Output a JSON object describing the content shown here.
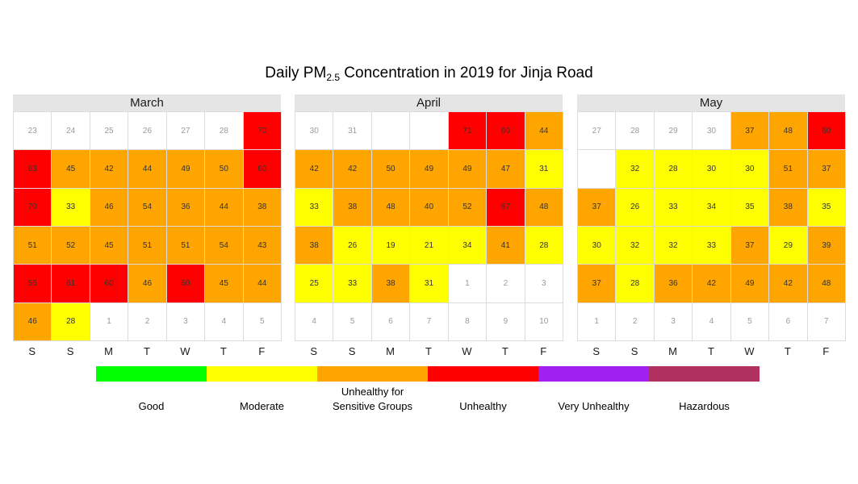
{
  "title": {
    "prefix": "Daily PM",
    "subscript": "2.5",
    "suffix": " Concentration in 2019 for Jinja Road"
  },
  "weekday_labels": [
    "S",
    "S",
    "M",
    "T",
    "W",
    "T",
    "F"
  ],
  "colors": {
    "Good": "#00ff00",
    "Moderate": "#ffff00",
    "Unhealthy for Sensitive Groups": "#ffa500",
    "Unhealthy": "#ff0000",
    "Very Unhealthy": "#a020f0",
    "Hazardous": "#b03060",
    "empty": "#ffffff",
    "out_of_month_text": "#9a9a9a",
    "in_month_text": "#333333"
  },
  "legend": [
    {
      "line1": "",
      "line2": "Good",
      "color": "#00ff00"
    },
    {
      "line1": "",
      "line2": "Moderate",
      "color": "#ffff00"
    },
    {
      "line1": "Unhealthy for",
      "line2": "Sensitive Groups",
      "color": "#ffa500"
    },
    {
      "line1": "",
      "line2": "Unhealthy",
      "color": "#ff0000"
    },
    {
      "line1": "",
      "line2": "Very Unhealthy",
      "color": "#a020f0"
    },
    {
      "line1": "",
      "line2": "Hazardous",
      "color": "#b03060"
    }
  ],
  "chart_data": {
    "type": "heatmap",
    "title": "Daily PM2.5 Concentration in 2019 for Jinja Road",
    "columns": [
      "S",
      "S",
      "M",
      "T",
      "W",
      "T",
      "F"
    ],
    "months": [
      {
        "name": "March",
        "rows": [
          [
            {
              "t": "23",
              "c": "empty"
            },
            {
              "t": "24",
              "c": "empty"
            },
            {
              "t": "25",
              "c": "empty"
            },
            {
              "t": "26",
              "c": "empty"
            },
            {
              "t": "27",
              "c": "empty"
            },
            {
              "t": "28",
              "c": "empty"
            },
            {
              "t": "70",
              "c": "Unhealthy"
            }
          ],
          [
            {
              "t": "63",
              "c": "Unhealthy"
            },
            {
              "t": "45",
              "c": "Unhealthy for Sensitive Groups"
            },
            {
              "t": "42",
              "c": "Unhealthy for Sensitive Groups"
            },
            {
              "t": "44",
              "c": "Unhealthy for Sensitive Groups"
            },
            {
              "t": "49",
              "c": "Unhealthy for Sensitive Groups"
            },
            {
              "t": "50",
              "c": "Unhealthy for Sensitive Groups"
            },
            {
              "t": "60",
              "c": "Unhealthy"
            }
          ],
          [
            {
              "t": "70",
              "c": "Unhealthy"
            },
            {
              "t": "33",
              "c": "Moderate"
            },
            {
              "t": "46",
              "c": "Unhealthy for Sensitive Groups"
            },
            {
              "t": "54",
              "c": "Unhealthy for Sensitive Groups"
            },
            {
              "t": "36",
              "c": "Unhealthy for Sensitive Groups"
            },
            {
              "t": "44",
              "c": "Unhealthy for Sensitive Groups"
            },
            {
              "t": "38",
              "c": "Unhealthy for Sensitive Groups"
            }
          ],
          [
            {
              "t": "51",
              "c": "Unhealthy for Sensitive Groups"
            },
            {
              "t": "52",
              "c": "Unhealthy for Sensitive Groups"
            },
            {
              "t": "45",
              "c": "Unhealthy for Sensitive Groups"
            },
            {
              "t": "51",
              "c": "Unhealthy for Sensitive Groups"
            },
            {
              "t": "51",
              "c": "Unhealthy for Sensitive Groups"
            },
            {
              "t": "54",
              "c": "Unhealthy for Sensitive Groups"
            },
            {
              "t": "43",
              "c": "Unhealthy for Sensitive Groups"
            }
          ],
          [
            {
              "t": "56",
              "c": "Unhealthy"
            },
            {
              "t": "61",
              "c": "Unhealthy"
            },
            {
              "t": "60",
              "c": "Unhealthy"
            },
            {
              "t": "46",
              "c": "Unhealthy for Sensitive Groups"
            },
            {
              "t": "60",
              "c": "Unhealthy"
            },
            {
              "t": "45",
              "c": "Unhealthy for Sensitive Groups"
            },
            {
              "t": "44",
              "c": "Unhealthy for Sensitive Groups"
            }
          ],
          [
            {
              "t": "46",
              "c": "Unhealthy for Sensitive Groups"
            },
            {
              "t": "28",
              "c": "Moderate"
            },
            {
              "t": "1",
              "c": "empty"
            },
            {
              "t": "2",
              "c": "empty"
            },
            {
              "t": "3",
              "c": "empty"
            },
            {
              "t": "4",
              "c": "empty"
            },
            {
              "t": "5",
              "c": "empty"
            }
          ]
        ]
      },
      {
        "name": "April",
        "rows": [
          [
            {
              "t": "30",
              "c": "empty"
            },
            {
              "t": "31",
              "c": "empty"
            },
            {
              "t": "",
              "c": "empty"
            },
            {
              "t": "",
              "c": "empty"
            },
            {
              "t": "71",
              "c": "Unhealthy"
            },
            {
              "t": "60",
              "c": "Unhealthy"
            },
            {
              "t": "44",
              "c": "Unhealthy for Sensitive Groups"
            }
          ],
          [
            {
              "t": "42",
              "c": "Unhealthy for Sensitive Groups"
            },
            {
              "t": "42",
              "c": "Unhealthy for Sensitive Groups"
            },
            {
              "t": "50",
              "c": "Unhealthy for Sensitive Groups"
            },
            {
              "t": "49",
              "c": "Unhealthy for Sensitive Groups"
            },
            {
              "t": "49",
              "c": "Unhealthy for Sensitive Groups"
            },
            {
              "t": "47",
              "c": "Unhealthy for Sensitive Groups"
            },
            {
              "t": "31",
              "c": "Moderate"
            }
          ],
          [
            {
              "t": "33",
              "c": "Moderate"
            },
            {
              "t": "38",
              "c": "Unhealthy for Sensitive Groups"
            },
            {
              "t": "48",
              "c": "Unhealthy for Sensitive Groups"
            },
            {
              "t": "40",
              "c": "Unhealthy for Sensitive Groups"
            },
            {
              "t": "52",
              "c": "Unhealthy for Sensitive Groups"
            },
            {
              "t": "67",
              "c": "Unhealthy"
            },
            {
              "t": "48",
              "c": "Unhealthy for Sensitive Groups"
            }
          ],
          [
            {
              "t": "38",
              "c": "Unhealthy for Sensitive Groups"
            },
            {
              "t": "26",
              "c": "Moderate"
            },
            {
              "t": "19",
              "c": "Moderate"
            },
            {
              "t": "21",
              "c": "Moderate"
            },
            {
              "t": "34",
              "c": "Moderate"
            },
            {
              "t": "41",
              "c": "Unhealthy for Sensitive Groups"
            },
            {
              "t": "28",
              "c": "Moderate"
            }
          ],
          [
            {
              "t": "25",
              "c": "Moderate"
            },
            {
              "t": "33",
              "c": "Moderate"
            },
            {
              "t": "38",
              "c": "Unhealthy for Sensitive Groups"
            },
            {
              "t": "31",
              "c": "Moderate"
            },
            {
              "t": "1",
              "c": "empty"
            },
            {
              "t": "2",
              "c": "empty"
            },
            {
              "t": "3",
              "c": "empty"
            }
          ],
          [
            {
              "t": "4",
              "c": "empty"
            },
            {
              "t": "5",
              "c": "empty"
            },
            {
              "t": "6",
              "c": "empty"
            },
            {
              "t": "7",
              "c": "empty"
            },
            {
              "t": "8",
              "c": "empty"
            },
            {
              "t": "9",
              "c": "empty"
            },
            {
              "t": "10",
              "c": "empty"
            }
          ]
        ]
      },
      {
        "name": "May",
        "rows": [
          [
            {
              "t": "27",
              "c": "empty"
            },
            {
              "t": "28",
              "c": "empty"
            },
            {
              "t": "29",
              "c": "empty"
            },
            {
              "t": "30",
              "c": "empty"
            },
            {
              "t": "37",
              "c": "Unhealthy for Sensitive Groups"
            },
            {
              "t": "48",
              "c": "Unhealthy for Sensitive Groups"
            },
            {
              "t": "60",
              "c": "Unhealthy"
            }
          ],
          [
            {
              "t": "",
              "c": "empty"
            },
            {
              "t": "32",
              "c": "Moderate"
            },
            {
              "t": "28",
              "c": "Moderate"
            },
            {
              "t": "30",
              "c": "Moderate"
            },
            {
              "t": "30",
              "c": "Moderate"
            },
            {
              "t": "51",
              "c": "Unhealthy for Sensitive Groups"
            },
            {
              "t": "37",
              "c": "Unhealthy for Sensitive Groups"
            }
          ],
          [
            {
              "t": "37",
              "c": "Unhealthy for Sensitive Groups"
            },
            {
              "t": "26",
              "c": "Moderate"
            },
            {
              "t": "33",
              "c": "Moderate"
            },
            {
              "t": "34",
              "c": "Moderate"
            },
            {
              "t": "35",
              "c": "Moderate"
            },
            {
              "t": "38",
              "c": "Unhealthy for Sensitive Groups"
            },
            {
              "t": "35",
              "c": "Moderate"
            }
          ],
          [
            {
              "t": "30",
              "c": "Moderate"
            },
            {
              "t": "32",
              "c": "Moderate"
            },
            {
              "t": "32",
              "c": "Moderate"
            },
            {
              "t": "33",
              "c": "Moderate"
            },
            {
              "t": "37",
              "c": "Unhealthy for Sensitive Groups"
            },
            {
              "t": "29",
              "c": "Moderate"
            },
            {
              "t": "39",
              "c": "Unhealthy for Sensitive Groups"
            }
          ],
          [
            {
              "t": "37",
              "c": "Unhealthy for Sensitive Groups"
            },
            {
              "t": "28",
              "c": "Moderate"
            },
            {
              "t": "36",
              "c": "Unhealthy for Sensitive Groups"
            },
            {
              "t": "42",
              "c": "Unhealthy for Sensitive Groups"
            },
            {
              "t": "49",
              "c": "Unhealthy for Sensitive Groups"
            },
            {
              "t": "42",
              "c": "Unhealthy for Sensitive Groups"
            },
            {
              "t": "48",
              "c": "Unhealthy for Sensitive Groups"
            }
          ],
          [
            {
              "t": "1",
              "c": "empty"
            },
            {
              "t": "2",
              "c": "empty"
            },
            {
              "t": "3",
              "c": "empty"
            },
            {
              "t": "4",
              "c": "empty"
            },
            {
              "t": "5",
              "c": "empty"
            },
            {
              "t": "6",
              "c": "empty"
            },
            {
              "t": "7",
              "c": "empty"
            }
          ]
        ]
      }
    ]
  }
}
